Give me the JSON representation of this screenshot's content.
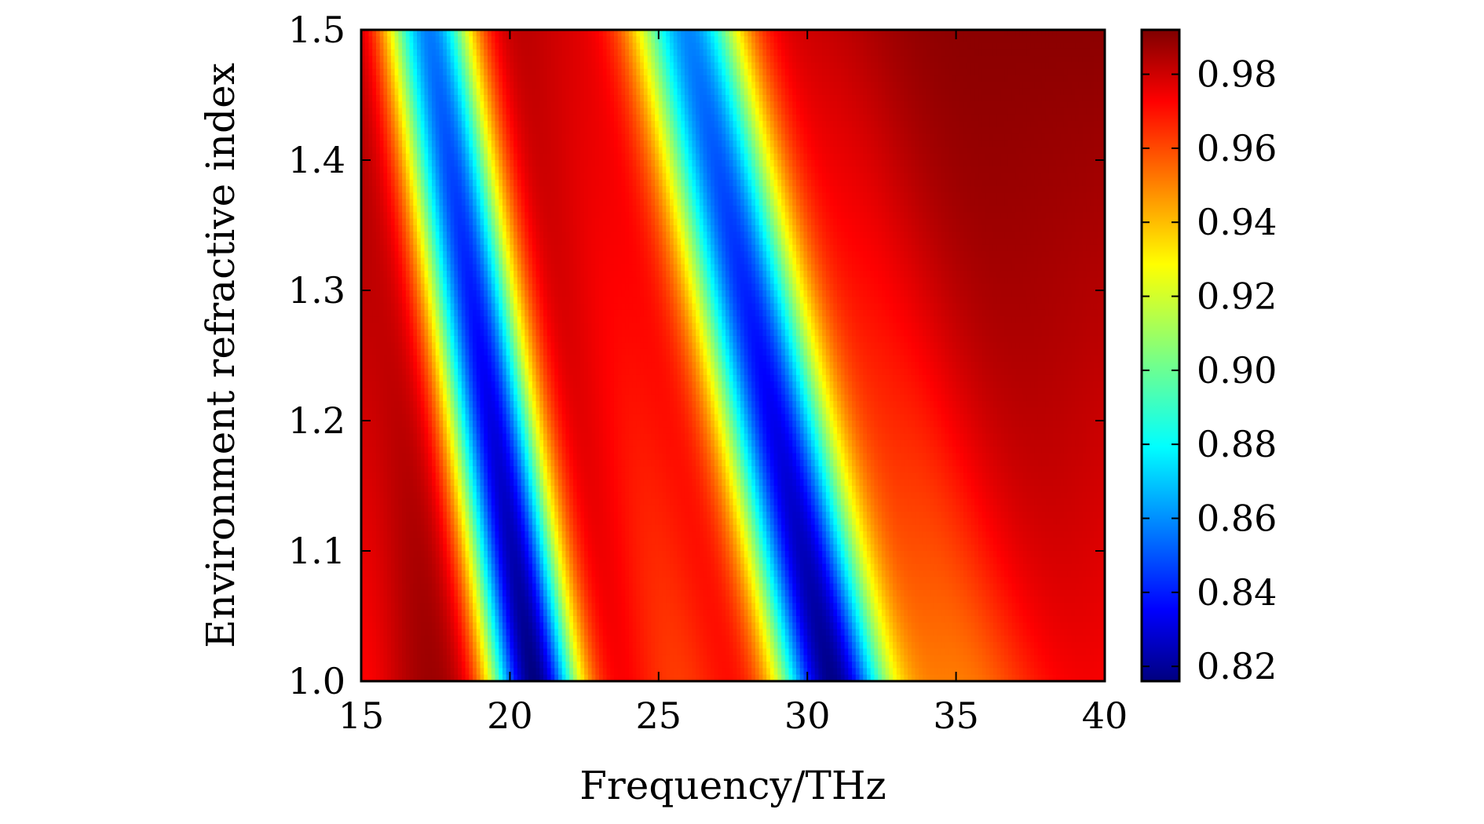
{
  "chart_data": {
    "type": "heatmap",
    "title": "",
    "xlabel": "Frequency/THz",
    "ylabel": "Environment refractive index",
    "xlim": [
      15,
      40
    ],
    "ylim": [
      1.0,
      1.5
    ],
    "xticks": [
      "15",
      "20",
      "25",
      "30",
      "35",
      "40"
    ],
    "yticks": [
      "1.0",
      "1.1",
      "1.2",
      "1.3",
      "1.4",
      "1.5"
    ],
    "colorbar": {
      "range": [
        0.816,
        0.992
      ],
      "ticks": [
        "0.82",
        "0.84",
        "0.86",
        "0.88",
        "0.90",
        "0.92",
        "0.94",
        "0.96",
        "0.98"
      ],
      "colormap": "jet"
    },
    "grid": false,
    "features": [
      {
        "name": "dip 1",
        "x_at_y_min": 20.8,
        "x_at_y_max": 17.3,
        "min_value": 0.816
      },
      {
        "name": "dip 2",
        "x_at_y_min": 30.8,
        "x_at_y_max": 26.0,
        "min_value": 0.82
      }
    ],
    "max_value_region": {
      "x": [
        33,
        40
      ],
      "y": [
        1.2,
        1.5
      ],
      "value": 0.99
    }
  }
}
